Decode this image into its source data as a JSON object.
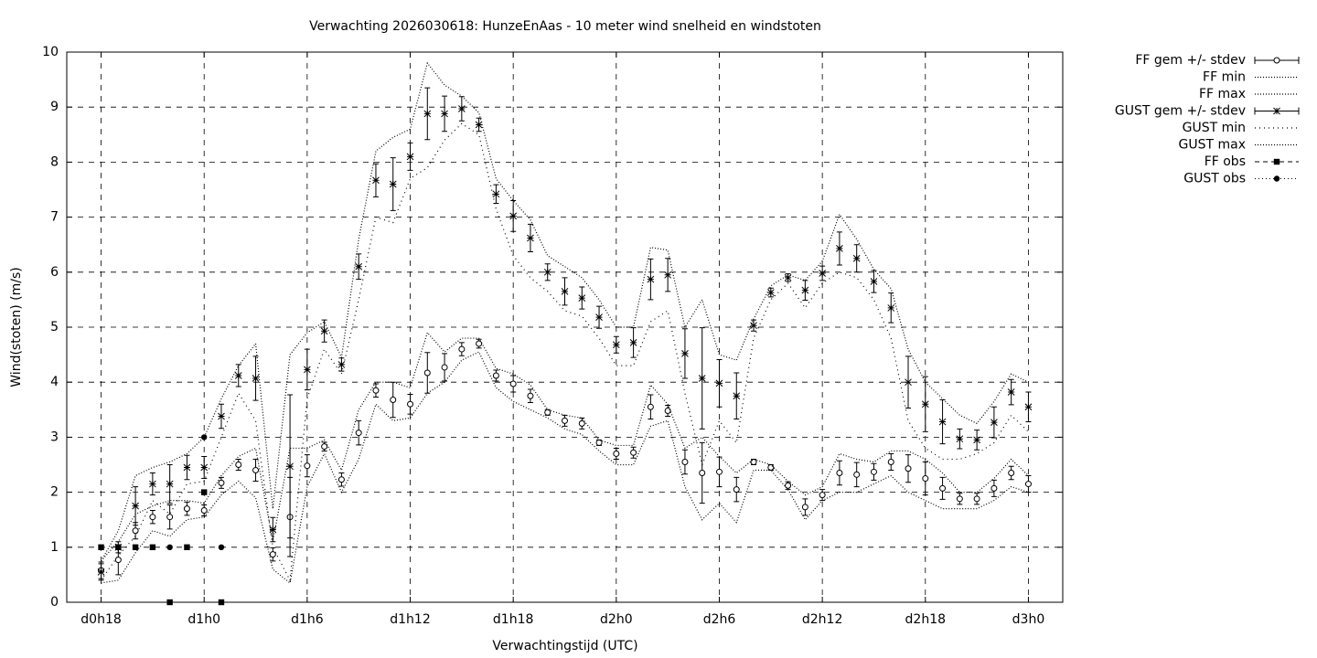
{
  "chart_data": {
    "type": "line",
    "title": "Verwachting 2026030618: HunzeEnAas - 10 meter wind snelheid en windstoten",
    "x_label": "Verwachtingstijd (UTC)",
    "y_label": "Wind(stoten) (m/s)",
    "x": [
      18,
      19,
      20,
      21,
      22,
      23,
      24,
      25,
      26,
      27,
      28,
      29,
      30,
      31,
      32,
      33,
      34,
      35,
      36,
      37,
      38,
      39,
      40,
      41,
      42,
      43,
      44,
      45,
      46,
      47,
      48,
      49,
      50,
      51,
      52,
      53,
      54,
      55,
      56,
      57,
      58,
      59,
      60,
      61,
      62,
      63,
      64,
      65,
      66,
      67,
      68,
      69,
      70,
      71,
      72
    ],
    "xlim": [
      16,
      74
    ],
    "xticks": [
      {
        "value": 18,
        "label": "d0h18"
      },
      {
        "value": 24,
        "label": "d1h0"
      },
      {
        "value": 30,
        "label": "d1h6"
      },
      {
        "value": 36,
        "label": "d1h12"
      },
      {
        "value": 42,
        "label": "d1h18"
      },
      {
        "value": 48,
        "label": "d2h0"
      },
      {
        "value": 54,
        "label": "d2h6"
      },
      {
        "value": 60,
        "label": "d2h12"
      },
      {
        "value": 66,
        "label": "d2h18"
      },
      {
        "value": 72,
        "label": "d3h0"
      }
    ],
    "ylim": [
      0,
      10
    ],
    "yticks": [
      0,
      1,
      2,
      3,
      4,
      5,
      6,
      7,
      8,
      9,
      10
    ],
    "grid": true,
    "legend": "outside-right",
    "color": "#000000",
    "series": [
      {
        "name": "FF gem +/- stdev",
        "marker": "circle",
        "line": "errorbar",
        "values": [
          0.58,
          0.77,
          1.3,
          1.55,
          1.55,
          1.7,
          1.67,
          2.17,
          2.5,
          2.4,
          0.87,
          1.55,
          2.48,
          2.83,
          2.23,
          3.08,
          3.85,
          3.68,
          3.6,
          4.17,
          4.27,
          4.6,
          4.7,
          4.12,
          3.97,
          3.75,
          3.45,
          3.3,
          3.25,
          2.9,
          2.7,
          2.72,
          3.55,
          3.48,
          2.55,
          2.35,
          2.37,
          2.05,
          2.55,
          2.45,
          2.12,
          1.73,
          1.95,
          2.35,
          2.32,
          2.37,
          2.55,
          2.43,
          2.25,
          2.07,
          1.88,
          1.88,
          2.07,
          2.35,
          2.15
        ],
        "errors": [
          0.15,
          0.27,
          0.15,
          0.12,
          0.22,
          0.12,
          0.1,
          0.1,
          0.1,
          0.2,
          0.12,
          0.72,
          0.2,
          0.08,
          0.12,
          0.22,
          0.12,
          0.32,
          0.18,
          0.37,
          0.25,
          0.12,
          0.08,
          0.1,
          0.15,
          0.12,
          0.05,
          0.1,
          0.1,
          0.05,
          0.1,
          0.1,
          0.22,
          0.1,
          0.22,
          0.55,
          0.27,
          0.22,
          0.05,
          0.05,
          0.07,
          0.15,
          0.1,
          0.22,
          0.22,
          0.15,
          0.15,
          0.25,
          0.3,
          0.2,
          0.1,
          0.1,
          0.15,
          0.12,
          0.15
        ]
      },
      {
        "name": "FF min",
        "marker": "none",
        "line": "dotted",
        "values": [
          0.35,
          0.4,
          0.9,
          1.3,
          1.2,
          1.5,
          1.55,
          1.95,
          2.2,
          1.9,
          0.6,
          0.35,
          2.1,
          2.7,
          2.0,
          2.6,
          3.6,
          3.3,
          3.35,
          3.8,
          4.0,
          4.4,
          4.55,
          3.9,
          3.65,
          3.5,
          3.35,
          3.15,
          3.05,
          2.75,
          2.5,
          2.5,
          3.2,
          3.3,
          2.1,
          1.5,
          1.8,
          1.45,
          2.4,
          2.4,
          2.05,
          1.5,
          1.85,
          2.0,
          2.0,
          2.15,
          2.3,
          2.0,
          1.85,
          1.7,
          1.7,
          1.7,
          1.85,
          2.1,
          2.0
        ]
      },
      {
        "name": "FF max",
        "marker": "none",
        "line": "dotted",
        "values": [
          0.75,
          1.1,
          1.6,
          1.75,
          1.85,
          1.85,
          1.8,
          2.3,
          2.65,
          2.8,
          1.1,
          2.8,
          2.8,
          2.95,
          2.4,
          3.5,
          4.0,
          4.0,
          3.9,
          4.9,
          4.55,
          4.8,
          4.8,
          4.25,
          4.15,
          3.95,
          3.5,
          3.4,
          3.35,
          2.95,
          2.85,
          2.85,
          3.95,
          3.6,
          2.8,
          3.0,
          2.65,
          2.35,
          2.6,
          2.5,
          2.2,
          1.95,
          2.1,
          2.7,
          2.6,
          2.55,
          2.75,
          2.75,
          2.6,
          2.35,
          2.0,
          2.0,
          2.25,
          2.6,
          2.3
        ]
      },
      {
        "name": "GUST gem +/- stdev",
        "marker": "star",
        "line": "errorbar",
        "values": [
          0.55,
          1.0,
          1.75,
          2.15,
          2.15,
          2.45,
          2.45,
          3.38,
          4.12,
          4.07,
          1.32,
          2.47,
          4.23,
          4.93,
          4.32,
          6.1,
          7.67,
          7.6,
          8.1,
          8.88,
          8.88,
          8.97,
          8.68,
          7.42,
          7.02,
          6.62,
          6.0,
          5.65,
          5.53,
          5.18,
          4.68,
          4.72,
          5.87,
          5.95,
          4.52,
          4.07,
          3.98,
          3.75,
          5.03,
          5.63,
          5.9,
          5.67,
          5.98,
          6.43,
          6.25,
          5.83,
          5.35,
          4.0,
          3.6,
          3.28,
          2.97,
          2.95,
          3.27,
          3.82,
          3.55
        ],
        "errors": [
          0.15,
          0.1,
          0.35,
          0.2,
          0.35,
          0.22,
          0.2,
          0.22,
          0.2,
          0.4,
          0.22,
          1.3,
          0.37,
          0.2,
          0.12,
          0.23,
          0.3,
          0.48,
          0.25,
          0.47,
          0.32,
          0.22,
          0.12,
          0.17,
          0.28,
          0.25,
          0.15,
          0.25,
          0.2,
          0.2,
          0.15,
          0.27,
          0.37,
          0.3,
          0.45,
          0.92,
          0.43,
          0.42,
          0.1,
          0.08,
          0.07,
          0.18,
          0.13,
          0.3,
          0.25,
          0.2,
          0.27,
          0.47,
          0.5,
          0.4,
          0.18,
          0.18,
          0.28,
          0.23,
          0.27
        ]
      },
      {
        "name": "GUST min",
        "marker": "none",
        "line": "sparse",
        "values": [
          0.4,
          0.85,
          1.2,
          1.85,
          1.6,
          2.15,
          2.2,
          3.0,
          3.8,
          3.3,
          1.0,
          0.4,
          3.7,
          4.6,
          4.15,
          5.5,
          7.0,
          6.9,
          7.7,
          7.9,
          8.4,
          8.7,
          8.5,
          7.15,
          6.3,
          5.9,
          5.65,
          5.3,
          5.2,
          4.8,
          4.3,
          4.3,
          5.1,
          5.3,
          3.8,
          2.5,
          3.3,
          2.9,
          4.8,
          5.5,
          5.8,
          5.35,
          5.8,
          6.0,
          5.9,
          5.5,
          4.8,
          3.3,
          2.8,
          2.6,
          2.6,
          2.7,
          2.9,
          3.4,
          3.1
        ]
      },
      {
        "name": "GUST max",
        "marker": "none",
        "line": "dotted",
        "values": [
          0.75,
          1.3,
          2.3,
          2.45,
          2.55,
          2.7,
          3.0,
          3.7,
          4.3,
          4.7,
          1.7,
          4.5,
          4.9,
          5.1,
          4.45,
          6.6,
          8.2,
          8.45,
          8.6,
          9.8,
          9.4,
          9.2,
          8.9,
          7.7,
          7.3,
          6.95,
          6.3,
          6.1,
          5.9,
          5.5,
          5.0,
          5.0,
          6.45,
          6.4,
          5.0,
          5.5,
          4.5,
          4.4,
          5.15,
          5.75,
          5.95,
          5.85,
          6.2,
          7.05,
          6.6,
          6.05,
          5.7,
          4.6,
          4.0,
          3.7,
          3.4,
          3.25,
          3.65,
          4.15,
          4.0
        ]
      },
      {
        "name": "FF obs",
        "marker": "square",
        "line": "none",
        "values": [
          1,
          1,
          1,
          1,
          0,
          1,
          2,
          0,
          null,
          null,
          null,
          null,
          null,
          null,
          null,
          null,
          null,
          null,
          null,
          null,
          null,
          null,
          null,
          null,
          null,
          null,
          null,
          null,
          null,
          null,
          null,
          null,
          null,
          null,
          null,
          null,
          null,
          null,
          null,
          null,
          null,
          null,
          null,
          null,
          null,
          null,
          null,
          null,
          null,
          null,
          null,
          null,
          null,
          null,
          null
        ]
      },
      {
        "name": "GUST obs",
        "marker": "dot",
        "line": "none",
        "values": [
          null,
          null,
          null,
          null,
          1,
          null,
          3,
          1,
          null,
          null,
          null,
          null,
          null,
          null,
          null,
          null,
          null,
          null,
          null,
          null,
          null,
          null,
          null,
          null,
          null,
          null,
          null,
          null,
          null,
          null,
          null,
          null,
          null,
          null,
          null,
          null,
          null,
          null,
          null,
          null,
          null,
          null,
          null,
          null,
          null,
          null,
          null,
          null,
          null,
          null,
          null,
          null,
          null,
          null,
          null
        ]
      }
    ]
  }
}
